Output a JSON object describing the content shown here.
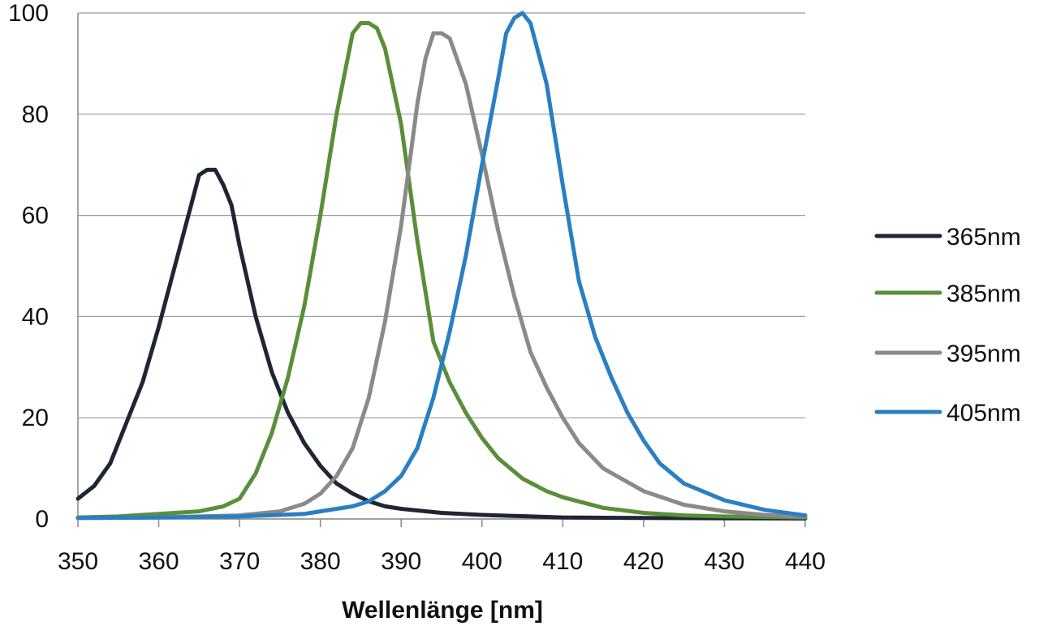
{
  "chart_data": {
    "type": "line",
    "title": "",
    "xlabel": "Wellenlänge [nm]",
    "ylabel": "",
    "xlim": [
      350,
      440
    ],
    "ylim": [
      0,
      100
    ],
    "xticks": [
      350,
      360,
      370,
      380,
      390,
      400,
      410,
      420,
      430,
      440
    ],
    "yticks": [
      0,
      20,
      40,
      60,
      80,
      100
    ],
    "grid": true,
    "legend_position": "right",
    "series": [
      {
        "name": "365nm",
        "color": "#1f2633",
        "x": [
          350,
          352,
          354,
          356,
          358,
          360,
          362,
          364,
          365,
          366,
          367,
          368,
          369,
          370,
          372,
          374,
          376,
          378,
          380,
          382,
          384,
          386,
          388,
          390,
          395,
          400,
          410,
          420,
          440
        ],
        "y": [
          4,
          6.5,
          11,
          19,
          27,
          38,
          50,
          62,
          68,
          69,
          69,
          66,
          62,
          54,
          40,
          29,
          21,
          15,
          10.5,
          7,
          5,
          3.5,
          2.5,
          2,
          1.2,
          0.8,
          0.3,
          0.2,
          0.1
        ]
      },
      {
        "name": "385nm",
        "color": "#5a8f3a",
        "x": [
          350,
          355,
          360,
          365,
          368,
          370,
          372,
          374,
          376,
          378,
          380,
          382,
          384,
          385,
          386,
          387,
          388,
          390,
          392,
          393,
          394,
          396,
          398,
          400,
          402,
          405,
          408,
          410,
          415,
          420,
          425,
          430,
          440
        ],
        "y": [
          0.3,
          0.5,
          1,
          1.5,
          2.5,
          4,
          9,
          17,
          28,
          42,
          60,
          80,
          96,
          98,
          98,
          97,
          93,
          78,
          55,
          45,
          35,
          27,
          21,
          16,
          12,
          8,
          5.5,
          4.3,
          2.2,
          1.2,
          0.7,
          0.5,
          0.3
        ]
      },
      {
        "name": "395nm",
        "color": "#8a8a8a",
        "x": [
          350,
          360,
          370,
          375,
          378,
          380,
          382,
          384,
          386,
          388,
          390,
          391,
          392,
          393,
          394,
          395,
          396,
          398,
          400,
          402,
          404,
          406,
          408,
          410,
          412,
          415,
          420,
          425,
          430,
          435,
          440
        ],
        "y": [
          0.2,
          0.3,
          0.7,
          1.5,
          3,
          5,
          8.5,
          14,
          24,
          39,
          58,
          70,
          82,
          91,
          96,
          96,
          95,
          86,
          72,
          57,
          44,
          33,
          26,
          20,
          15,
          10,
          5.5,
          2.8,
          1.5,
          0.8,
          0.4
        ]
      },
      {
        "name": "405nm",
        "color": "#2a7fc2",
        "x": [
          350,
          360,
          370,
          375,
          378,
          380,
          382,
          384,
          386,
          388,
          390,
          392,
          394,
          396,
          398,
          400,
          402,
          403,
          404,
          405,
          406,
          408,
          410,
          412,
          414,
          416,
          418,
          420,
          422,
          425,
          430,
          435,
          440
        ],
        "y": [
          0.2,
          0.3,
          0.5,
          0.8,
          1,
          1.5,
          2,
          2.5,
          3.5,
          5.5,
          8.5,
          14,
          24,
          37,
          52,
          70,
          87,
          96,
          99,
          100,
          98,
          86,
          66,
          47,
          36,
          28,
          21,
          15.5,
          11,
          7,
          3.7,
          1.8,
          0.7
        ]
      }
    ]
  }
}
